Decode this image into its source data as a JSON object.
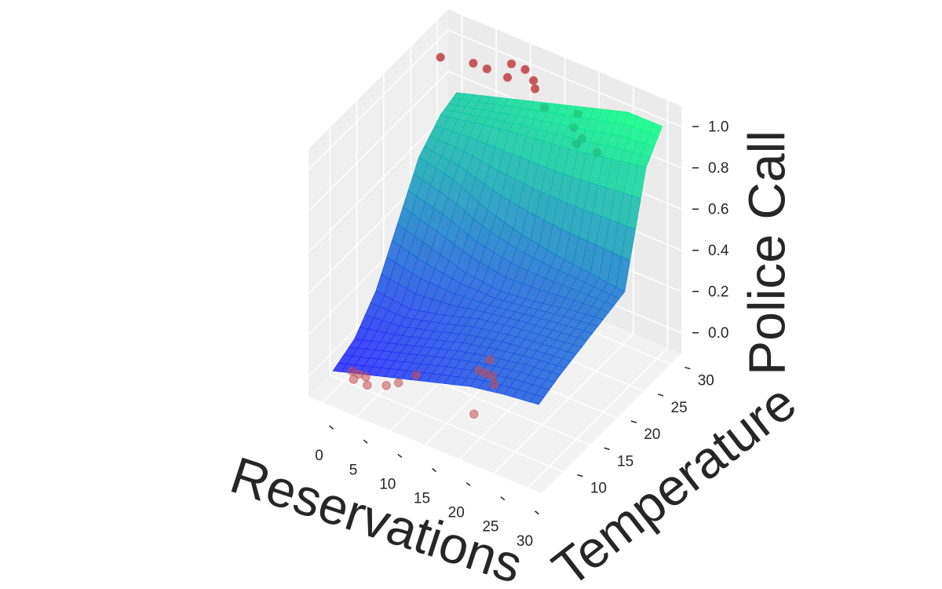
{
  "chart_data": {
    "type": "surface3d",
    "axes": {
      "x": {
        "label": "Reservations",
        "range": [
          -2,
          32
        ],
        "ticks": [
          0,
          5,
          10,
          15,
          20,
          25,
          30
        ]
      },
      "y": {
        "label": "Temperature",
        "range": [
          6,
          32
        ],
        "ticks": [
          10,
          15,
          20,
          25,
          30
        ]
      },
      "z": {
        "label": "Police Call",
        "range": [
          -0.1,
          1.1
        ],
        "ticks": [
          "0.0",
          "0.2",
          "0.4",
          "0.6",
          "0.8",
          "1.0"
        ]
      }
    },
    "surface": {
      "x_grid": [
        0,
        5,
        10,
        15,
        20,
        25,
        30
      ],
      "y_grid": [
        8,
        12,
        16,
        20,
        24,
        28,
        31
      ],
      "z": [
        [
          0.0,
          0.05,
          0.1,
          0.15,
          0.2,
          0.23,
          0.25
        ],
        [
          0.05,
          0.1,
          0.15,
          0.2,
          0.24,
          0.27,
          0.29
        ],
        [
          0.18,
          0.16,
          0.2,
          0.25,
          0.28,
          0.3,
          0.32
        ],
        [
          0.4,
          0.35,
          0.3,
          0.28,
          0.3,
          0.33,
          0.35
        ],
        [
          0.62,
          0.58,
          0.5,
          0.45,
          0.42,
          0.4,
          0.38
        ],
        [
          0.72,
          0.75,
          0.78,
          0.8,
          0.82,
          0.85,
          0.88
        ],
        [
          0.75,
          0.8,
          0.85,
          0.9,
          0.95,
          1.0,
          1.0
        ]
      ],
      "colormap": [
        "#1a1aff",
        "#00ff80"
      ]
    },
    "points": [
      {
        "x": 0,
        "y": 28,
        "z": 1
      },
      {
        "x": 4,
        "y": 29,
        "z": 1
      },
      {
        "x": 6,
        "y": 29,
        "z": 1
      },
      {
        "x": 8,
        "y": 31,
        "z": 1
      },
      {
        "x": 9,
        "y": 29,
        "z": 1
      },
      {
        "x": 10,
        "y": 31,
        "z": 1
      },
      {
        "x": 12,
        "y": 30,
        "z": 1
      },
      {
        "x": 13,
        "y": 29,
        "z": 1
      },
      {
        "x": 16,
        "y": 27,
        "z": 1
      },
      {
        "x": 20,
        "y": 28,
        "z": 1
      },
      {
        "x": 21,
        "y": 26,
        "z": 1
      },
      {
        "x": 23,
        "y": 25,
        "z": 1
      },
      {
        "x": 23,
        "y": 24,
        "z": 1
      },
      {
        "x": 26,
        "y": 24,
        "z": 1
      },
      {
        "x": 2,
        "y": 9,
        "z": 0
      },
      {
        "x": 3,
        "y": 9,
        "z": 0
      },
      {
        "x": 4,
        "y": 9,
        "z": 0
      },
      {
        "x": 3,
        "y": 8,
        "z": 0
      },
      {
        "x": 5,
        "y": 8,
        "z": 0
      },
      {
        "x": 7,
        "y": 9,
        "z": 0
      },
      {
        "x": 8,
        "y": 10,
        "z": 0
      },
      {
        "x": 9,
        "y": 12,
        "z": 0
      },
      {
        "x": 15,
        "y": 16,
        "z": 0
      },
      {
        "x": 16,
        "y": 16,
        "z": 0
      },
      {
        "x": 17,
        "y": 16,
        "z": 0
      },
      {
        "x": 15,
        "y": 18,
        "z": 0
      },
      {
        "x": 18,
        "y": 15,
        "z": 0
      },
      {
        "x": 19,
        "y": 10,
        "z": 0
      }
    ],
    "point_color": "#c44e52",
    "pane_color": "#f2f2f2",
    "grid": true
  }
}
